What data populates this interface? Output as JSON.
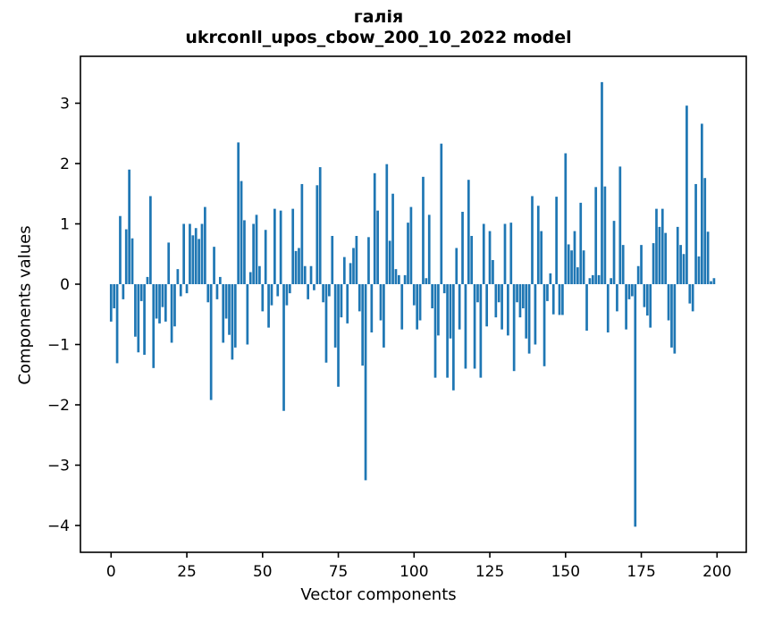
{
  "figure": {
    "title_line1": "галія",
    "title_line2": "ukrconll_upos_cbow_200_10_2022 model"
  },
  "chart_data": {
    "type": "bar",
    "title": "галія — ukrconll_upos_cbow_200_10_2022 model",
    "xlabel": "Vector components",
    "ylabel": "Components values",
    "bar_color": "#1f77b4",
    "axis_color": "#000000",
    "grid": false,
    "legend": null,
    "n_components": 200,
    "x_ticks": [
      0,
      25,
      50,
      75,
      100,
      125,
      150,
      175,
      200
    ],
    "y_ticks": [
      3,
      2,
      1,
      0,
      -1,
      -2,
      -3,
      -4
    ],
    "xlim": [
      -10.1,
      209.6
    ],
    "ylim": [
      -4.44,
      3.78
    ],
    "values": [
      -0.62,
      -0.4,
      -1.31,
      1.13,
      -0.25,
      0.91,
      1.9,
      0.76,
      -0.87,
      -1.13,
      -0.28,
      -1.17,
      0.12,
      1.46,
      -1.39,
      -0.57,
      -0.65,
      -0.38,
      -0.62,
      0.69,
      -0.97,
      -0.7,
      0.25,
      -0.2,
      1.0,
      -0.15,
      1.0,
      0.81,
      0.93,
      0.75,
      1.0,
      1.28,
      -0.3,
      -1.92,
      0.62,
      -0.25,
      0.12,
      -0.97,
      -0.57,
      -0.84,
      -1.25,
      -1.05,
      2.35,
      1.71,
      1.06,
      -1.0,
      0.2,
      1.0,
      1.15,
      0.3,
      -0.45,
      0.9,
      -0.72,
      -0.35,
      1.25,
      -0.2,
      1.22,
      -2.1,
      -0.35,
      -0.15,
      1.25,
      0.55,
      0.6,
      1.66,
      0.3,
      -0.25,
      0.3,
      -0.1,
      1.64,
      1.94,
      -0.3,
      -1.3,
      -0.2,
      0.8,
      -1.05,
      -1.7,
      -0.55,
      0.45,
      -0.65,
      0.35,
      0.6,
      0.8,
      -0.45,
      -1.35,
      -3.25,
      0.78,
      -0.8,
      1.84,
      1.22,
      -0.6,
      -1.05,
      1.99,
      0.72,
      1.5,
      0.25,
      0.15,
      -0.75,
      0.15,
      1.02,
      1.28,
      -0.35,
      -0.75,
      -0.6,
      1.78,
      0.1,
      1.15,
      -0.4,
      -1.55,
      -0.85,
      2.33,
      -0.15,
      -1.55,
      -0.9,
      -1.76,
      0.6,
      -0.75,
      1.2,
      -1.4,
      1.73,
      0.8,
      -1.4,
      -0.3,
      -1.55,
      1.0,
      -0.7,
      0.88,
      0.4,
      -0.55,
      -0.3,
      -0.75,
      1.0,
      -0.85,
      1.02,
      -1.44,
      -0.3,
      -0.55,
      -0.4,
      -0.9,
      -1.15,
      1.46,
      -1.0,
      1.3,
      0.88,
      -1.36,
      -0.28,
      0.18,
      -0.5,
      1.45,
      -0.51,
      -0.51,
      2.17,
      0.66,
      0.56,
      0.88,
      0.28,
      1.35,
      0.56,
      -0.77,
      0.1,
      0.15,
      1.61,
      0.15,
      3.35,
      1.62,
      -0.8,
      0.1,
      1.05,
      -0.45,
      1.95,
      0.65,
      -0.75,
      -0.25,
      -0.2,
      -4.02,
      0.3,
      0.65,
      -0.38,
      -0.52,
      -0.72,
      0.68,
      1.25,
      0.95,
      1.25,
      0.85,
      -0.6,
      -1.05,
      -1.15,
      0.95,
      0.65,
      0.5,
      2.96,
      -0.32,
      -0.45,
      1.66,
      0.46,
      2.66,
      1.76,
      0.87,
      0.05,
      0.1
    ]
  }
}
